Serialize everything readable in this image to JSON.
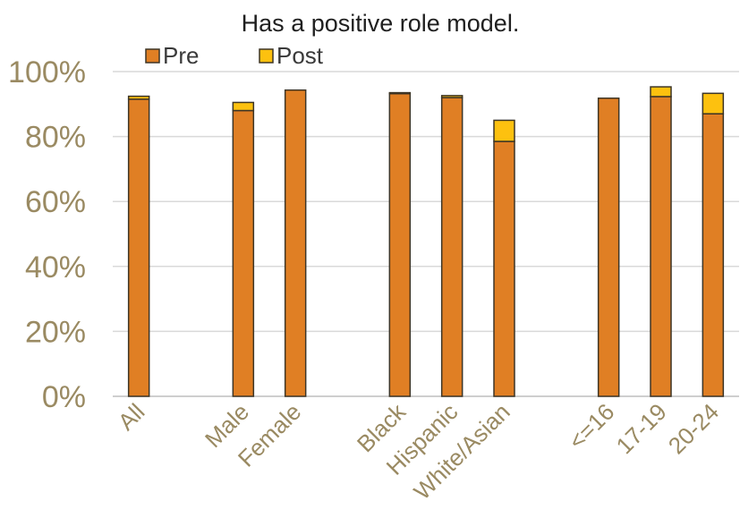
{
  "chart_data": {
    "type": "bar",
    "stacked": true,
    "title": "Has a positive role model.",
    "categories": [
      "All",
      "",
      "Male",
      "Female",
      "",
      "Black",
      "Hispanic",
      "White/Asian",
      "",
      "<=16",
      "17-19",
      "20-24"
    ],
    "series": [
      {
        "name": "Pre",
        "color": "#e07f24",
        "values": [
          91.5,
          null,
          88,
          94.3,
          null,
          93.2,
          92,
          78.5,
          null,
          91.8,
          92.3,
          87
        ]
      },
      {
        "name": "Post",
        "color": "#fdc10f",
        "values": [
          0.9,
          null,
          2.5,
          0,
          null,
          0.3,
          0.6,
          6.5,
          null,
          0,
          3,
          6.3
        ]
      }
    ],
    "ylim": [
      0,
      100
    ],
    "yticks": [
      "0%",
      "20%",
      "40%",
      "60%",
      "80%",
      "100%"
    ],
    "ytick_values": [
      0,
      20,
      40,
      60,
      80,
      100
    ],
    "grid": true,
    "legend_position": "top-left",
    "xlabel": "",
    "ylabel": ""
  }
}
